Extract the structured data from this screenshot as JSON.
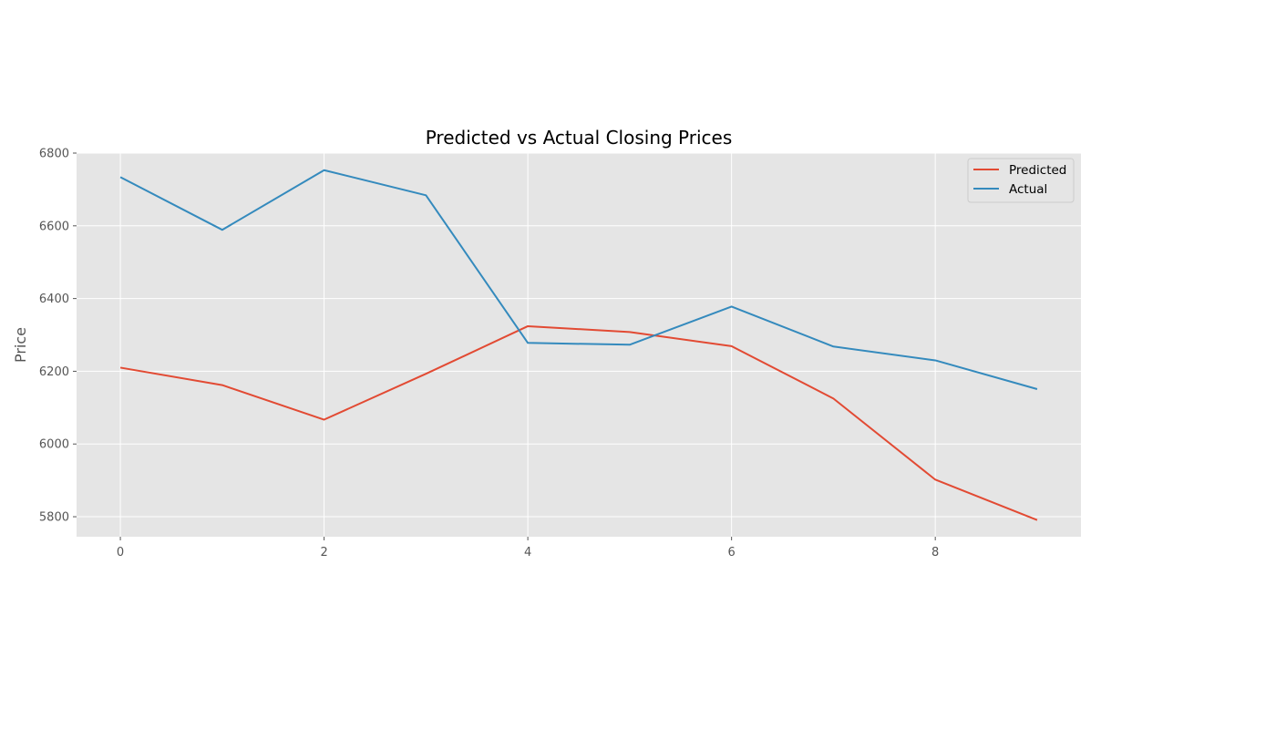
{
  "chart_data": {
    "type": "line",
    "title": "Predicted vs Actual Closing Prices",
    "xlabel": "",
    "ylabel": "Price",
    "x": [
      0,
      1,
      2,
      3,
      4,
      5,
      6,
      7,
      8,
      9
    ],
    "xlim": [
      -0.43,
      9.43
    ],
    "ylim": [
      5745,
      6800
    ],
    "xticks": [
      0,
      2,
      4,
      6,
      8
    ],
    "yticks": [
      5800,
      6000,
      6200,
      6400,
      6600,
      6800
    ],
    "grid": true,
    "legend_position": "top-right",
    "series": [
      {
        "name": "Predicted",
        "color": "#E24A33",
        "values": [
          6210,
          6162,
          6067,
          6193,
          6324,
          6308,
          6269,
          6125,
          5902,
          5791
        ]
      },
      {
        "name": "Actual",
        "color": "#348ABD",
        "values": [
          6734,
          6589,
          6753,
          6684,
          6278,
          6273,
          6378,
          6268,
          6230,
          6151
        ]
      }
    ],
    "background_color": "#E5E5E5",
    "grid_color": "#FFFFFF"
  }
}
